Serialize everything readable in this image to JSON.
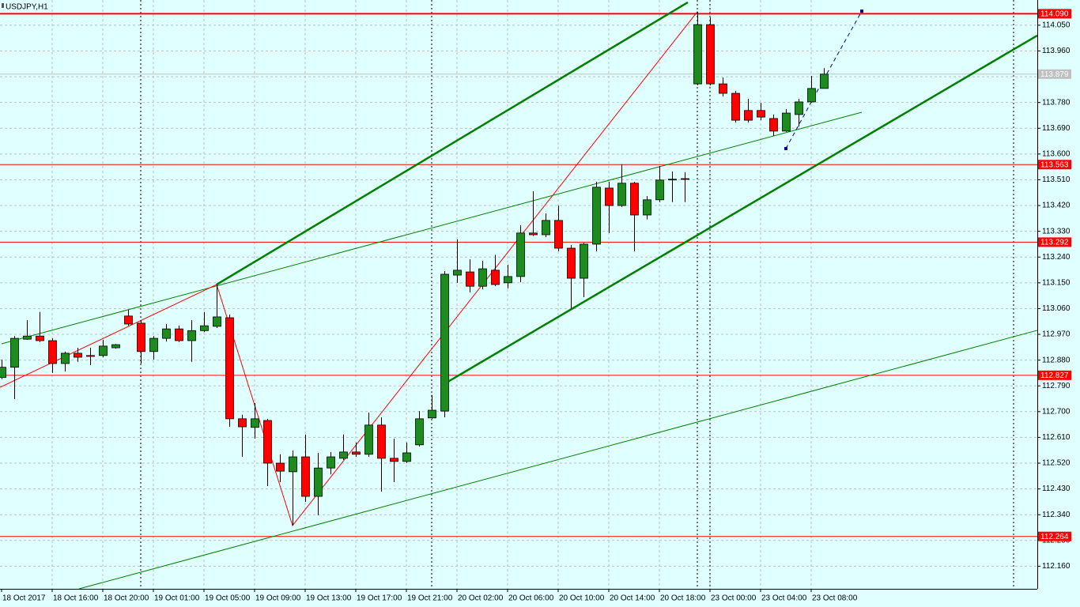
{
  "chart_data": {
    "type": "candlestick",
    "title": "USDJPY,H1",
    "categories": [
      "18 Oct 2017",
      null,
      null,
      null,
      "18 Oct 16:00",
      null,
      null,
      null,
      "18 Oct 20:00",
      null,
      null,
      null,
      "19 Oct 01:00",
      null,
      null,
      null,
      "19 Oct 05:00",
      null,
      null,
      null,
      "19 Oct 09:00",
      null,
      null,
      null,
      "19 Oct 13:00",
      null,
      null,
      null,
      "19 Oct 17:00",
      null,
      null,
      null,
      "19 Oct 21:00",
      null,
      null,
      null,
      "20 Oct 02:00",
      null,
      null,
      null,
      "20 Oct 06:00",
      null,
      null,
      null,
      "20 Oct 10:00",
      null,
      null,
      null,
      "20 Oct 14:00",
      null,
      null,
      null,
      "20 Oct 18:00",
      null,
      null,
      null,
      "23 Oct 00:00",
      null,
      null,
      null,
      "23 Oct 04:00",
      null,
      null,
      null,
      "23 Oct 08:00",
      null
    ],
    "open": [
      112.819,
      112.855,
      112.953,
      112.964,
      112.948,
      112.868,
      112.904,
      112.896,
      112.896,
      112.923,
      113.034,
      113.009,
      112.91,
      112.956,
      112.989,
      112.948,
      112.983,
      112.998,
      113.028,
      112.675,
      112.645,
      112.669,
      112.52,
      112.49,
      112.542,
      112.404,
      112.503,
      112.537,
      112.559,
      112.551,
      112.653,
      112.537,
      112.526,
      112.584,
      112.678,
      112.702,
      113.177,
      113.188,
      113.138,
      113.194,
      113.15,
      113.172,
      113.324,
      113.318,
      113.368,
      113.271,
      113.166,
      113.285,
      113.481,
      113.42,
      113.498,
      113.387,
      113.44,
      113.512,
      113.514,
      113.845,
      114.052,
      113.845,
      113.812,
      113.752,
      113.752,
      113.724,
      113.68,
      113.738,
      113.782,
      113.829
    ],
    "high": [
      112.882,
      112.964,
      113.02,
      113.048,
      112.956,
      112.91,
      112.923,
      112.923,
      112.951,
      112.937,
      113.056,
      113.02,
      112.964,
      113.006,
      113.0,
      113.02,
      113.048,
      113.144,
      113.039,
      112.689,
      112.73,
      112.675,
      112.551,
      112.564,
      112.62,
      112.556,
      112.559,
      112.62,
      112.592,
      112.697,
      112.68,
      112.606,
      112.592,
      112.702,
      112.758,
      113.191,
      113.302,
      113.232,
      113.227,
      113.248,
      113.213,
      113.351,
      113.47,
      113.393,
      113.42,
      113.282,
      113.29,
      113.503,
      113.503,
      113.564,
      113.503,
      113.453,
      113.558,
      113.539,
      113.536,
      114.097,
      114.077,
      113.867,
      113.82,
      113.793,
      113.779,
      113.738,
      113.757,
      113.793,
      113.873,
      113.9
    ],
    "low": [
      112.813,
      112.744,
      112.951,
      112.943,
      112.835,
      112.84,
      112.874,
      112.862,
      112.89,
      112.92,
      113.0,
      112.868,
      112.882,
      112.945,
      112.943,
      112.874,
      112.978,
      112.992,
      112.647,
      112.542,
      112.606,
      112.44,
      112.454,
      112.302,
      112.385,
      112.338,
      112.481,
      112.531,
      112.542,
      112.542,
      112.421,
      112.454,
      112.52,
      112.578,
      112.675,
      112.68,
      113.15,
      113.116,
      113.127,
      113.138,
      113.13,
      113.152,
      113.313,
      113.31,
      113.26,
      113.061,
      113.1,
      113.26,
      113.324,
      113.415,
      113.26,
      113.371,
      113.432,
      113.432,
      113.432,
      113.84,
      113.84,
      113.801,
      113.71,
      113.71,
      113.718,
      113.663,
      113.677,
      113.696,
      113.779,
      113.829
    ],
    "close": [
      112.855,
      112.956,
      112.964,
      112.948,
      112.868,
      112.904,
      112.89,
      112.893,
      112.929,
      112.934,
      113.006,
      112.91,
      112.956,
      112.989,
      112.948,
      112.983,
      113.0,
      113.031,
      112.675,
      112.647,
      112.675,
      112.52,
      112.492,
      112.542,
      112.404,
      112.503,
      112.542,
      112.559,
      112.551,
      112.653,
      112.537,
      112.526,
      112.556,
      112.675,
      112.705,
      113.18,
      113.194,
      113.138,
      113.199,
      113.144,
      113.172,
      113.324,
      113.318,
      113.368,
      113.271,
      113.166,
      113.285,
      113.484,
      113.42,
      113.498,
      113.387,
      113.44,
      113.509,
      113.512,
      113.512,
      114.052,
      113.845,
      113.812,
      113.718,
      113.718,
      113.729,
      113.68,
      113.743,
      113.782,
      113.829,
      113.879
    ],
    "up_color": "#1f8a1f",
    "down_color": "#ff0000",
    "ylim": [
      112.081,
      114.138
    ],
    "yticks": [
      {
        "value": 114.05,
        "label": "114.050"
      },
      {
        "value": 113.96,
        "label": "113.960"
      },
      {
        "value": 113.87,
        "label": "113.870"
      },
      {
        "value": 113.78,
        "label": "113.780"
      },
      {
        "value": 113.69,
        "label": "113.690"
      },
      {
        "value": 113.6,
        "label": "113.600"
      },
      {
        "value": 113.51,
        "label": "113.510"
      },
      {
        "value": 113.42,
        "label": "113.420"
      },
      {
        "value": 113.33,
        "label": "113.330"
      },
      {
        "value": 113.24,
        "label": "113.240"
      },
      {
        "value": 113.15,
        "label": "113.150"
      },
      {
        "value": 113.06,
        "label": "113.060"
      },
      {
        "value": 112.97,
        "label": "112.970"
      },
      {
        "value": 112.88,
        "label": "112.880"
      },
      {
        "value": 112.79,
        "label": "112.790"
      },
      {
        "value": 112.7,
        "label": "112.700"
      },
      {
        "value": 112.61,
        "label": "112.610"
      },
      {
        "value": 112.52,
        "label": "112.520"
      },
      {
        "value": 112.43,
        "label": "112.430"
      },
      {
        "value": 112.34,
        "label": "112.340"
      },
      {
        "value": 112.25,
        "label": "112.250"
      },
      {
        "value": 112.16,
        "label": "112.160"
      }
    ],
    "grid": true,
    "levels": [
      {
        "value": 114.09,
        "label": "114.090"
      },
      113.563,
      113.292,
      112.827,
      112.264
    ],
    "level_color": "#ff0000",
    "current_price": {
      "value": 113.879,
      "label": "113.879"
    },
    "lines": [
      {
        "color": "#008000",
        "width": 2.5,
        "x": [
          17,
          54.25
        ],
        "y": [
          113.144,
          114.13
        ]
      },
      {
        "color": "#008000",
        "width": 2.5,
        "x": [
          35.3,
          81.875
        ],
        "y": [
          112.805,
          114.014
        ]
      },
      {
        "color": "#008000",
        "width": 1,
        "x": [
          0,
          68
        ],
        "y": [
          112.937,
          113.746
        ]
      },
      {
        "color": "#008000",
        "width": 1,
        "x": [
          6.125,
          81.875
        ],
        "y": [
          112.081,
          112.984
        ]
      },
      {
        "color": "#ff0000",
        "width": 1,
        "x": [
          -0.125,
          17,
          23,
          55
        ],
        "y": [
          112.785,
          113.144,
          112.302,
          114.097
        ]
      },
      {
        "color": "#00008b",
        "width": 1,
        "dashed": true,
        "markers": true,
        "x": [
          62,
          65,
          68
        ],
        "y": [
          113.619,
          113.862,
          114.099
        ]
      }
    ]
  }
}
